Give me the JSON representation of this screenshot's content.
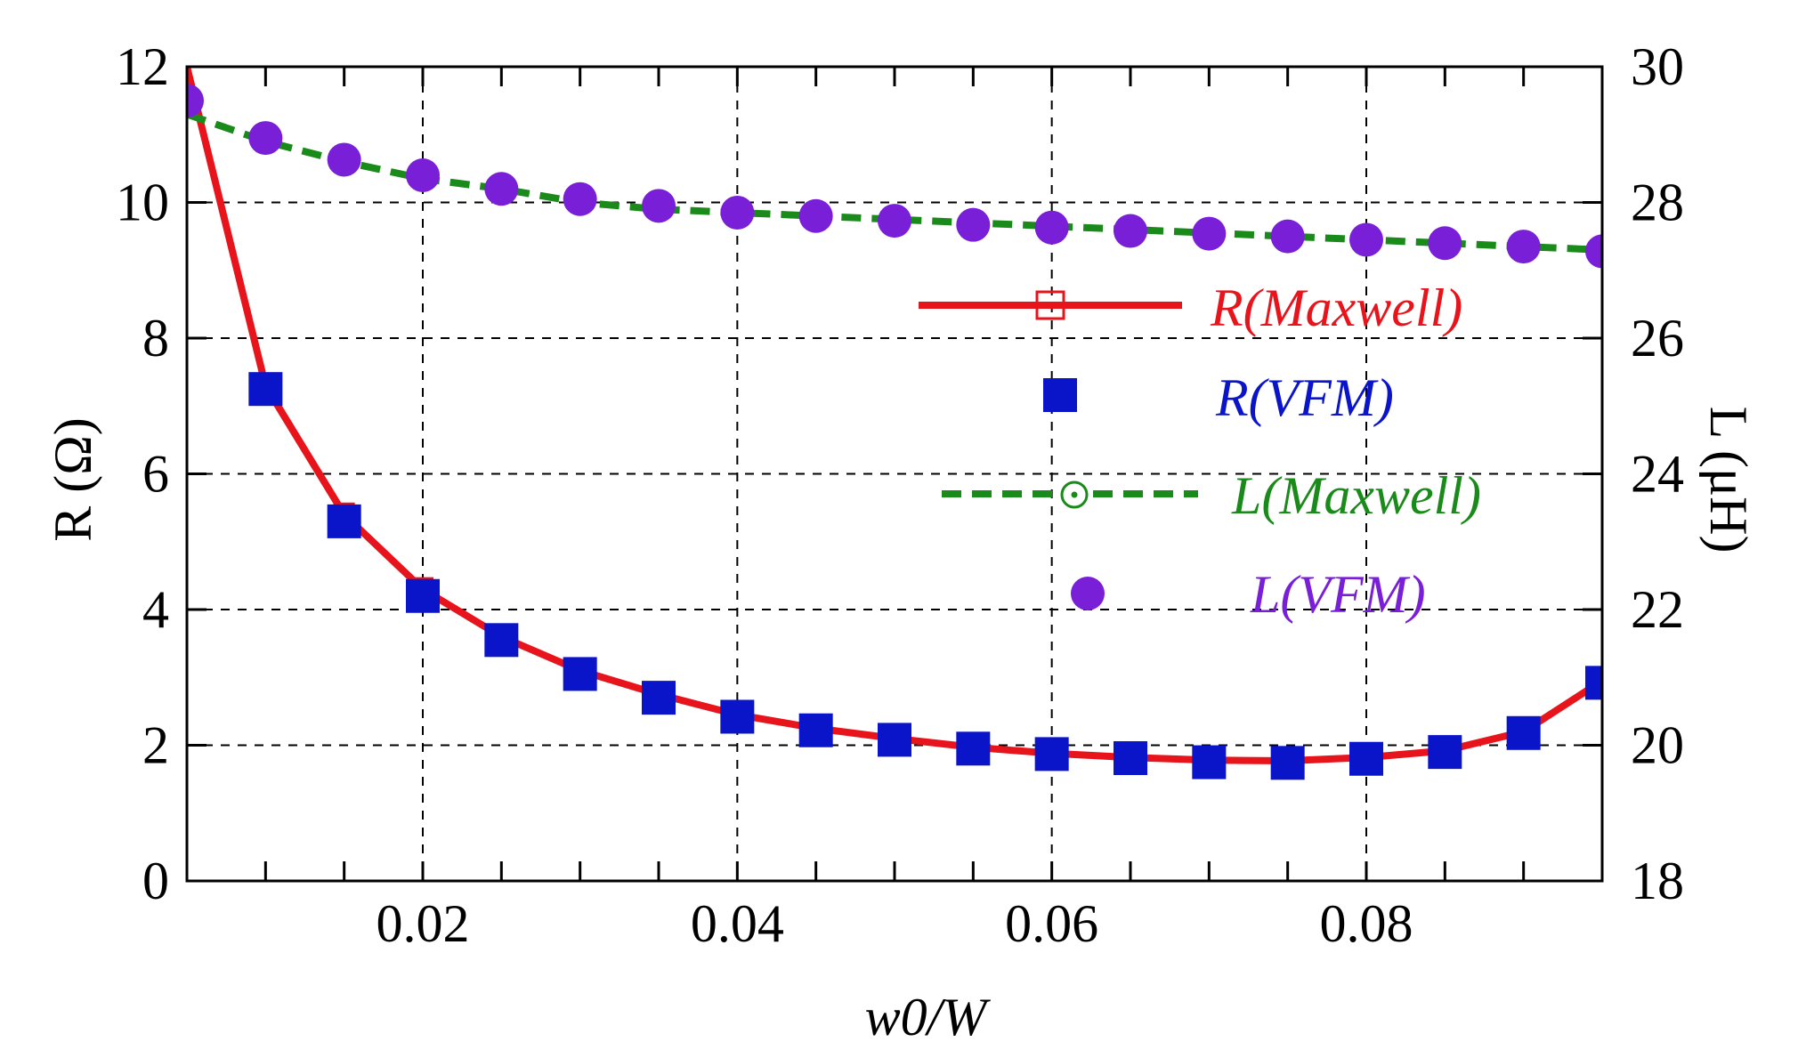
{
  "chart_data": {
    "type": "line",
    "xlabel": "w0/W",
    "ylabel_left": "R (Ω)",
    "ylabel_right": "L (μH)",
    "xlim": [
      0.005,
      0.095
    ],
    "ylim_left": [
      0,
      12
    ],
    "ylim_right": [
      18,
      30
    ],
    "x_ticks": [
      0.02,
      0.04,
      0.06,
      0.08
    ],
    "x_tick_labels": [
      "0.02",
      "0.04",
      "0.06",
      "0.08"
    ],
    "y_left_ticks": [
      0,
      2,
      4,
      6,
      8,
      10,
      12
    ],
    "y_left_tick_labels": [
      "0",
      "2",
      "4",
      "6",
      "8",
      "10",
      "12"
    ],
    "y_right_ticks": [
      18,
      20,
      22,
      24,
      26,
      28,
      30
    ],
    "y_right_tick_labels": [
      "18",
      "20",
      "22",
      "24",
      "26",
      "28",
      "30"
    ],
    "grid": true,
    "legend_position": "center-right",
    "series": [
      {
        "name": "R(Maxwell)",
        "axis": "left",
        "style": "solid-line",
        "color": "#e8141c",
        "x": [
          0.005,
          0.01,
          0.015,
          0.02,
          0.025,
          0.03,
          0.035,
          0.04,
          0.045,
          0.05,
          0.055,
          0.06,
          0.065,
          0.07,
          0.075,
          0.08,
          0.085,
          0.09,
          0.095
        ],
        "values": [
          12.0,
          7.3,
          5.4,
          4.3,
          3.6,
          3.1,
          2.75,
          2.45,
          2.25,
          2.1,
          1.97,
          1.88,
          1.82,
          1.78,
          1.77,
          1.82,
          1.92,
          2.2,
          2.95
        ]
      },
      {
        "name": "R(VFM)",
        "axis": "left",
        "style": "square-markers",
        "color": "#0a14c8",
        "x": [
          0.01,
          0.015,
          0.02,
          0.025,
          0.03,
          0.035,
          0.04,
          0.045,
          0.05,
          0.055,
          0.06,
          0.065,
          0.07,
          0.075,
          0.08,
          0.085,
          0.09,
          0.095
        ],
        "values": [
          7.25,
          5.3,
          4.2,
          3.55,
          3.05,
          2.7,
          2.42,
          2.22,
          2.08,
          1.95,
          1.87,
          1.81,
          1.75,
          1.74,
          1.8,
          1.9,
          2.18,
          2.92
        ]
      },
      {
        "name": "L(Maxwell)",
        "axis": "right",
        "style": "dashed-line",
        "color": "#1a8a1a",
        "x": [
          0.005,
          0.01,
          0.015,
          0.02,
          0.025,
          0.03,
          0.035,
          0.04,
          0.045,
          0.05,
          0.055,
          0.06,
          0.065,
          0.07,
          0.075,
          0.08,
          0.085,
          0.09,
          0.095
        ],
        "values": [
          29.3,
          28.9,
          28.6,
          28.35,
          28.2,
          28.0,
          27.9,
          27.85,
          27.8,
          27.75,
          27.7,
          27.65,
          27.6,
          27.55,
          27.5,
          27.45,
          27.4,
          27.35,
          27.3
        ]
      },
      {
        "name": "L(VFM)",
        "axis": "right",
        "style": "circle-markers",
        "color": "#7a1fd8",
        "x": [
          0.005,
          0.01,
          0.015,
          0.02,
          0.025,
          0.03,
          0.035,
          0.04,
          0.045,
          0.05,
          0.055,
          0.06,
          0.065,
          0.07,
          0.075,
          0.08,
          0.085,
          0.09,
          0.095
        ],
        "values": [
          29.5,
          28.95,
          28.63,
          28.4,
          28.2,
          28.05,
          27.95,
          27.85,
          27.8,
          27.73,
          27.67,
          27.63,
          27.58,
          27.54,
          27.5,
          27.45,
          27.4,
          27.35,
          27.28
        ]
      }
    ]
  }
}
